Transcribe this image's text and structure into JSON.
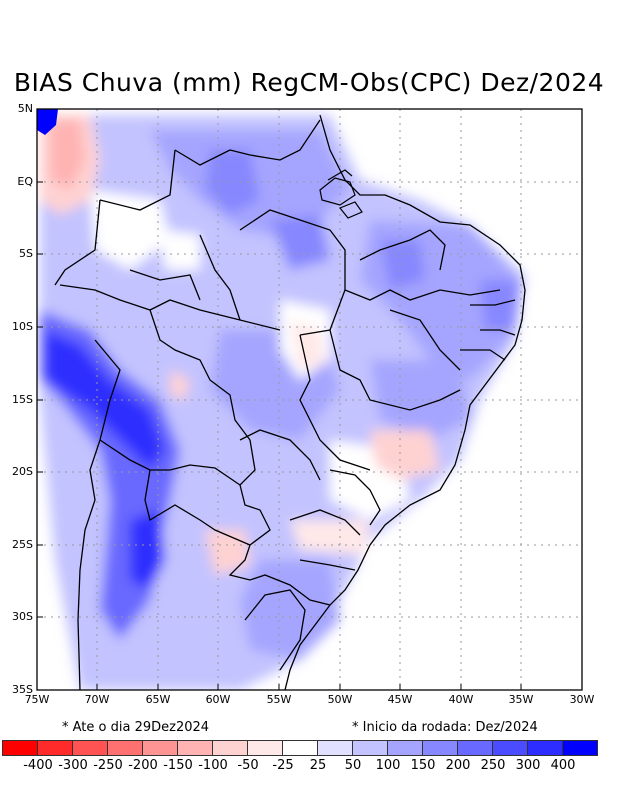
{
  "title": "BIAS Chuva (mm) RegCM-Obs(CPC) Dez/2024",
  "y_axis_labels": [
    "5N",
    "EQ",
    "5S",
    "10S",
    "15S",
    "20S",
    "25S",
    "30S",
    "35S"
  ],
  "x_axis_labels": [
    "75W",
    "70W",
    "65W",
    "60W",
    "55W",
    "50W",
    "45W",
    "40W",
    "35W",
    "30W"
  ],
  "footnotes": {
    "left": "* Ate o dia 29Dez2024",
    "right": "* Inicio da rodada: Dez/2024"
  },
  "legend": {
    "colors": [
      "#ff0000",
      "#ff2a2a",
      "#ff5252",
      "#ff7070",
      "#ff9494",
      "#ffb3b3",
      "#ffd2d2",
      "#ffe8e8",
      "#ffffff",
      "#e1e1ff",
      "#c3c3ff",
      "#a5a5ff",
      "#8787ff",
      "#6969ff",
      "#4b4bff",
      "#2d2dff",
      "#0000ff"
    ],
    "labels": [
      "-400",
      "-300",
      "-250",
      "-200",
      "-150",
      "-100",
      "-50",
      "-25",
      "25",
      "50",
      "100",
      "150",
      "200",
      "250",
      "300",
      "400"
    ]
  },
  "map_colors": {
    "background": "#ffffff",
    "grid": "#9a9a9a",
    "border": "#000000"
  }
}
